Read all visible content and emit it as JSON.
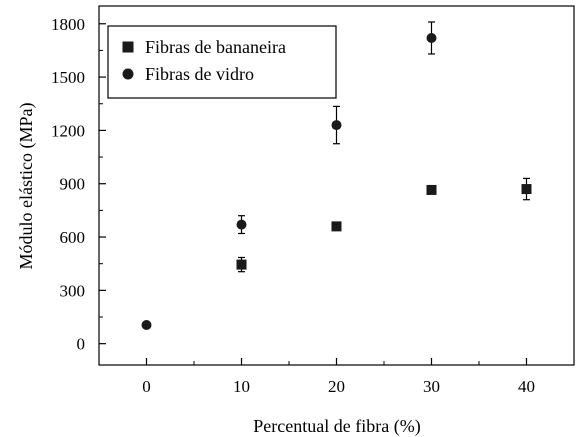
{
  "chart_data": {
    "type": "scatter",
    "xlabel": "Percentual de fibra (%)",
    "ylabel": "Módulo elástico (MPa)",
    "xlim": [
      -5,
      45
    ],
    "ylim": [
      -120,
      1900
    ],
    "xticks": [
      0,
      10,
      20,
      30,
      40
    ],
    "yticks": [
      0,
      300,
      600,
      900,
      1200,
      1500,
      1800
    ],
    "grid": false,
    "legend_position": "top-left",
    "series": [
      {
        "name": "Fibras de bananeira",
        "marker": "square",
        "color": "#1a1a1a",
        "points": [
          {
            "x": 10,
            "y": 445,
            "err": 40
          },
          {
            "x": 20,
            "y": 660,
            "err": 15
          },
          {
            "x": 30,
            "y": 865,
            "err": 12
          },
          {
            "x": 40,
            "y": 870,
            "err": 60
          }
        ]
      },
      {
        "name": "Fibras de vidro",
        "marker": "circle",
        "color": "#1a1a1a",
        "points": [
          {
            "x": 0,
            "y": 105,
            "err": 0
          },
          {
            "x": 10,
            "y": 670,
            "err": 50
          },
          {
            "x": 20,
            "y": 1230,
            "err": 105
          },
          {
            "x": 30,
            "y": 1720,
            "err": 90
          }
        ]
      }
    ]
  }
}
